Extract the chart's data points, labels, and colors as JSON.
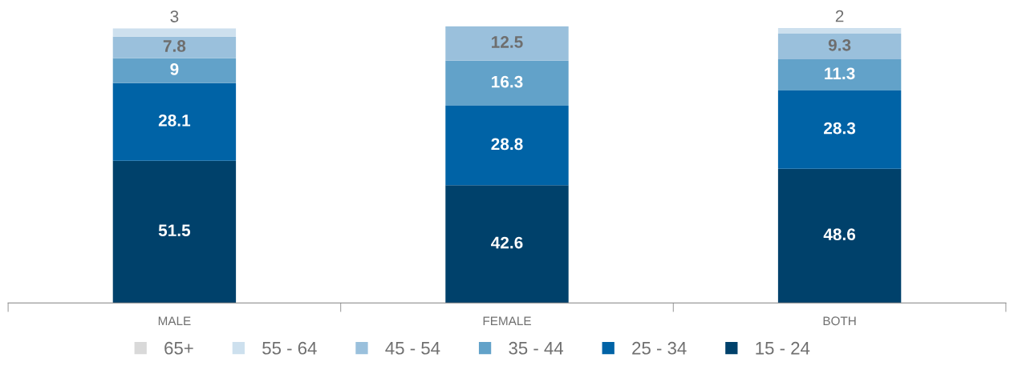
{
  "chart_data": {
    "type": "bar",
    "stacked": true,
    "categories": [
      "MALE",
      "FEMALE",
      "BOTH"
    ],
    "series": [
      {
        "name": "15 - 24",
        "color": "#00416b",
        "values": [
          51.5,
          42.6,
          48.6
        ],
        "value_labels": [
          "51.5",
          "42.6",
          "48.6"
        ]
      },
      {
        "name": "25 - 34",
        "color": "#0063a6",
        "values": [
          28.1,
          28.8,
          28.3
        ],
        "value_labels": [
          "28.1",
          "28.8",
          "28.3"
        ]
      },
      {
        "name": "35 - 44",
        "color": "#62a2c9",
        "values": [
          9,
          16.3,
          11.3
        ],
        "value_labels": [
          "9",
          "16.3",
          "11.3"
        ]
      },
      {
        "name": "45 - 54",
        "color": "#9ac0dc",
        "values": [
          7.8,
          12.5,
          9.3
        ],
        "value_labels": [
          "7.8",
          "12.5",
          "9.3"
        ]
      },
      {
        "name": "55 - 64",
        "color": "#cde0ee",
        "values": [
          3,
          null,
          2
        ],
        "value_labels": [
          "3",
          null,
          "2"
        ]
      },
      {
        "name": "65+",
        "color": "#d9d9d9",
        "values": [
          null,
          null,
          null
        ],
        "value_labels": [
          null,
          null,
          null
        ]
      }
    ],
    "legend": "bottom",
    "grid": false
  }
}
